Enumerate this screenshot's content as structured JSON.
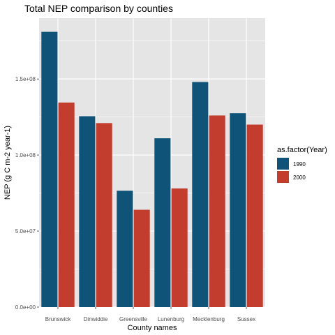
{
  "chart_data": {
    "type": "bar",
    "title": "Total NEP comparison by counties",
    "xlabel": "County names",
    "ylabel": "NEP (g C m-2 year-1)",
    "categories": [
      "Brunswick",
      "Dinwiddie",
      "Greensville",
      "Lunenburg",
      "Mecklenburg",
      "Sussex"
    ],
    "series": [
      {
        "name": "1990",
        "color": "#0f5478",
        "values": [
          181000000,
          125500000,
          76500000,
          111000000,
          148000000,
          127500000
        ]
      },
      {
        "name": "2000",
        "color": "#c33d2f",
        "values": [
          134500000,
          121000000,
          64000000,
          78000000,
          126000000,
          120000000
        ]
      }
    ],
    "y_ticks": [
      0,
      50000000,
      100000000,
      150000000
    ],
    "y_tick_labels": [
      "0.0e+00",
      "5.0e+07",
      "1.0e+08",
      "1.5e+08"
    ],
    "ylim": [
      0,
      190000000
    ],
    "legend_title": "as.factor(Year)",
    "legend_position": "right",
    "grid": true,
    "panel_background": "#e5e5e5",
    "grid_color": "#ffffff"
  }
}
